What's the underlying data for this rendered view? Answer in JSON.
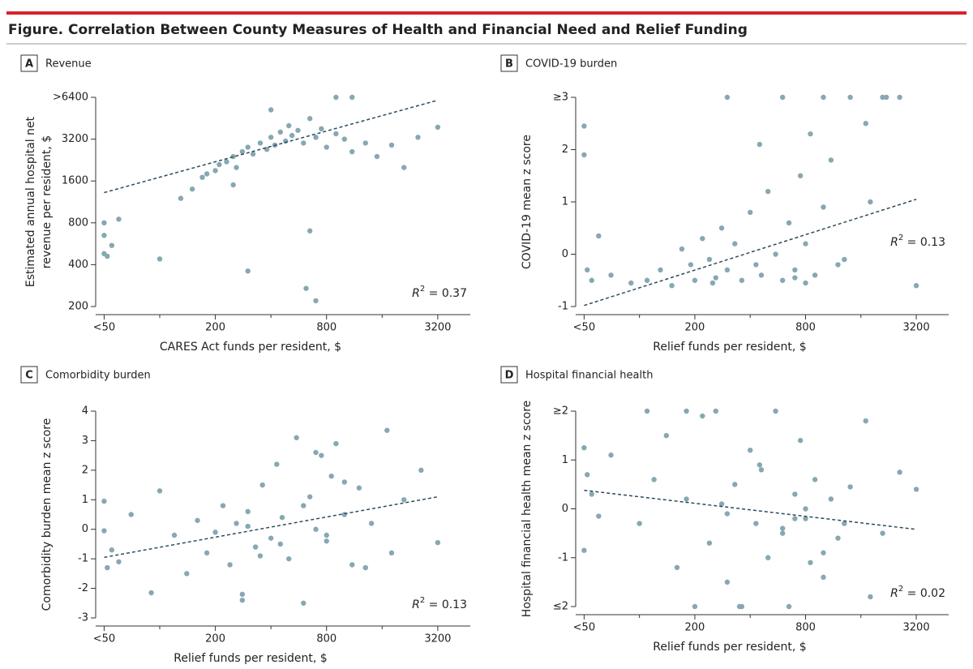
{
  "header": {
    "title": "Figure. Correlation Between County Measures of Health and Financial Need and Relief Funding"
  },
  "chart_data": [
    {
      "type": "scatter",
      "label": "A",
      "title": "Revenue",
      "xlabel": "CARES Act funds per resident, $",
      "ylabel": [
        "Estimated annual hospital net",
        "revenue per resident, $"
      ],
      "xscale": "log",
      "yscale": "log",
      "xlim": [
        45,
        4800
      ],
      "ylim": [
        200,
        6400
      ],
      "xticks": [
        {
          "value": 50,
          "label": "<50"
        },
        200,
        800,
        3200
      ],
      "xminorticks": [
        100,
        400,
        1600
      ],
      "yticks": [
        200,
        400,
        800,
        1600,
        3200,
        {
          "value": 6400,
          "label": ">6400"
        }
      ],
      "color": "#86a8b2",
      "annotation": {
        "symbol": "R",
        "exponent": "2",
        "text": " = 0.37"
      },
      "annotation_corner": "lower right",
      "trend": {
        "x": [
          50,
          3200
        ],
        "y": [
          1320,
          6100
        ]
      },
      "x": [
        50,
        50,
        50,
        52,
        55,
        60,
        100,
        300,
        620,
        700,
        650,
        3200,
        130,
        150,
        170,
        180,
        200,
        210,
        230,
        250,
        260,
        280,
        300,
        320,
        350,
        380,
        400,
        420,
        450,
        480,
        500,
        520,
        560,
        600,
        650,
        700,
        750,
        800,
        900,
        1000,
        1100,
        1300,
        1500,
        1800,
        2100,
        2500,
        900,
        1100,
        250,
        400
      ],
      "y": [
        800,
        650,
        480,
        460,
        550,
        850,
        440,
        360,
        270,
        220,
        700,
        3900,
        1200,
        1400,
        1700,
        1800,
        1900,
        2100,
        2200,
        2400,
        2000,
        2600,
        2800,
        2500,
        3000,
        2700,
        3300,
        2900,
        3600,
        3100,
        4000,
        3400,
        3700,
        3000,
        4500,
        3300,
        3800,
        2800,
        3500,
        3200,
        2600,
        3000,
        2400,
        2900,
        2000,
        3300,
        6400,
        6400,
        1500,
        5200
      ]
    },
    {
      "type": "scatter",
      "label": "B",
      "title": "COVID-19 burden",
      "xlabel": "Relief funds per resident, $",
      "ylabel": [
        "COVID-19 mean z score"
      ],
      "xscale": "log",
      "yscale": "linear",
      "xlim": [
        45,
        4800
      ],
      "ylim": [
        -1,
        3
      ],
      "xticks": [
        {
          "value": 50,
          "label": "<50"
        },
        200,
        800,
        3200
      ],
      "xminorticks": [
        100,
        400,
        1600
      ],
      "yticks": [
        -1,
        0,
        1,
        2,
        {
          "value": 3,
          "label": "≥3"
        }
      ],
      "color": "#86a8b2",
      "annotation": {
        "symbol": "R",
        "exponent": "2",
        "text": " = 0.13"
      },
      "annotation_corner": "center right",
      "trend": {
        "x": [
          50,
          3200
        ],
        "y": [
          -0.98,
          1.05
        ]
      },
      "x": [
        50,
        50,
        52,
        55,
        60,
        70,
        90,
        110,
        130,
        150,
        170,
        190,
        200,
        220,
        240,
        260,
        280,
        300,
        330,
        360,
        400,
        430,
        460,
        500,
        550,
        600,
        650,
        700,
        750,
        800,
        850,
        900,
        1000,
        1100,
        1200,
        1400,
        1700,
        2100,
        2600,
        3200,
        300,
        450,
        600,
        800,
        1000,
        1300,
        1800,
        2200,
        250,
        700
      ],
      "y": [
        2.45,
        1.9,
        -0.3,
        -0.5,
        0.35,
        -0.4,
        -0.55,
        -0.5,
        -0.3,
        -0.6,
        0.1,
        -0.2,
        -0.5,
        0.3,
        -0.1,
        -0.45,
        0.5,
        -0.3,
        0.2,
        -0.5,
        0.8,
        -0.2,
        -0.4,
        1.2,
        0,
        -0.5,
        0.6,
        -0.3,
        1.5,
        0.2,
        2.3,
        -0.4,
        3,
        1.8,
        -0.2,
        3,
        2.5,
        3,
        3,
        -0.6,
        3,
        2.1,
        3,
        -0.55,
        0.9,
        -0.1,
        1.0,
        3,
        -0.55,
        -0.45
      ]
    },
    {
      "type": "scatter",
      "label": "C",
      "title": "Comorbidity burden",
      "xlabel": "Relief funds per resident, $",
      "ylabel": [
        "Comorbidity burden mean z score"
      ],
      "xscale": "log",
      "yscale": "linear",
      "xlim": [
        45,
        4800
      ],
      "ylim": [
        -3,
        4
      ],
      "xticks": [
        {
          "value": 50,
          "label": "<50"
        },
        200,
        800,
        3200
      ],
      "xminorticks": [
        100,
        400,
        1600
      ],
      "yticks": [
        -3,
        -2,
        -1,
        0,
        1,
        2,
        3,
        4
      ],
      "color": "#86a8b2",
      "annotation": {
        "symbol": "R",
        "exponent": "2",
        "text": " = 0.13"
      },
      "annotation_corner": "lower right",
      "trend": {
        "x": [
          50,
          3200
        ],
        "y": [
          -0.95,
          1.1
        ]
      },
      "x": [
        50,
        50,
        52,
        55,
        60,
        70,
        90,
        100,
        120,
        140,
        160,
        180,
        200,
        220,
        240,
        260,
        280,
        300,
        330,
        360,
        400,
        430,
        460,
        500,
        550,
        600,
        650,
        700,
        750,
        800,
        850,
        900,
        1000,
        1100,
        1200,
        1400,
        1700,
        2100,
        2600,
        3200,
        300,
        450,
        600,
        800,
        1000,
        1300,
        1800,
        280,
        350,
        700
      ],
      "y": [
        0.95,
        -0.05,
        -1.3,
        -0.7,
        -1.1,
        0.5,
        -2.15,
        1.3,
        -0.2,
        -1.5,
        0.3,
        -0.8,
        -0.1,
        0.8,
        -1.2,
        0.2,
        -2.4,
        0.6,
        -0.6,
        1.5,
        -0.3,
        2.2,
        0.4,
        -1.0,
        3.1,
        -2.5,
        1.1,
        0.0,
        2.5,
        -0.4,
        1.8,
        2.9,
        0.5,
        -1.2,
        1.4,
        0.2,
        3.35,
        1.0,
        2.0,
        -0.45,
        0.1,
        -0.5,
        0.8,
        -0.2,
        1.6,
        -1.3,
        -0.8,
        -2.2,
        -0.9,
        2.6
      ]
    },
    {
      "type": "scatter",
      "label": "D",
      "title": "Hospital financial health",
      "xlabel": "Relief funds per resident, $",
      "ylabel": [
        "Hospital financial health mean z score"
      ],
      "xscale": "log",
      "yscale": "linear",
      "xlim": [
        45,
        4800
      ],
      "ylim": [
        -2,
        2
      ],
      "xticks": [
        {
          "value": 50,
          "label": "<50"
        },
        200,
        800,
        3200
      ],
      "xminorticks": [
        100,
        400,
        1600
      ],
      "yticks": [
        {
          "value": -2,
          "label": "≤2"
        },
        -1,
        0,
        1,
        {
          "value": 2,
          "label": "≥2"
        }
      ],
      "color": "#86a8b2",
      "annotation": {
        "symbol": "R",
        "exponent": "2",
        "text": " = 0.02"
      },
      "annotation_corner": "lower right",
      "trend": {
        "x": [
          50,
          3200
        ],
        "y": [
          0.38,
          -0.42
        ]
      },
      "x": [
        50,
        50,
        52,
        55,
        60,
        70,
        100,
        110,
        120,
        140,
        160,
        180,
        200,
        220,
        240,
        260,
        280,
        300,
        330,
        360,
        400,
        430,
        460,
        500,
        550,
        600,
        650,
        700,
        750,
        800,
        850,
        900,
        1000,
        1100,
        1200,
        1400,
        1700,
        2100,
        2600,
        3200,
        300,
        450,
        600,
        800,
        1000,
        1300,
        1800,
        180,
        350,
        700
      ],
      "y": [
        1.25,
        -0.85,
        0.7,
        0.3,
        -0.15,
        1.1,
        -0.3,
        2,
        0.6,
        1.5,
        -1.2,
        0.2,
        -2,
        1.9,
        -0.7,
        2,
        0.1,
        -1.5,
        0.5,
        -2,
        1.2,
        -0.3,
        0.8,
        -1.0,
        2,
        -0.4,
        -2,
        0.3,
        1.4,
        -0.2,
        -1.1,
        0.6,
        -1.4,
        0.2,
        -0.6,
        0.45,
        1.8,
        -0.5,
        0.75,
        0.4,
        -0.1,
        0.9,
        -0.5,
        0.0,
        -0.9,
        -0.3,
        -1.8,
        2,
        -2,
        -0.2
      ]
    }
  ]
}
